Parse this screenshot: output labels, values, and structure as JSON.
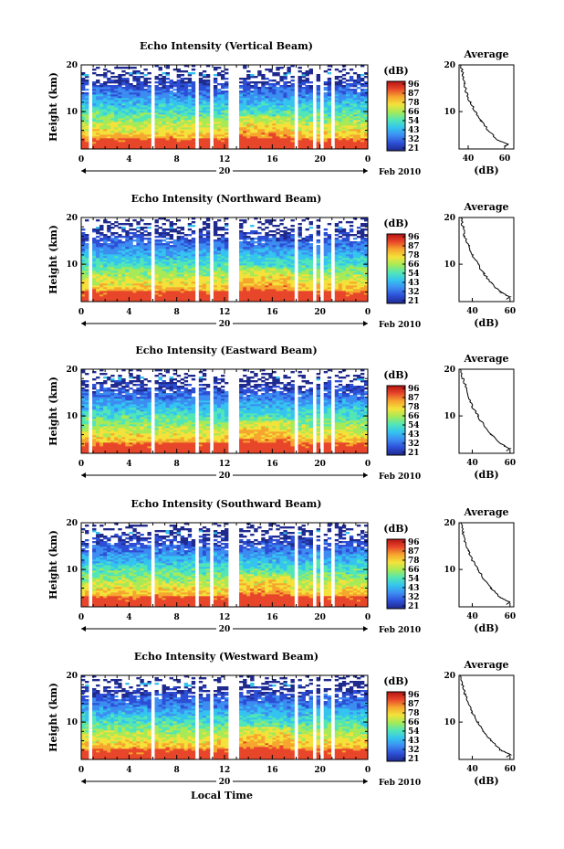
{
  "colormap": [
    "#1f2a8e",
    "#2d4fd6",
    "#3c8cf2",
    "#34c4ef",
    "#52e6b6",
    "#a6ea58",
    "#f4e23a",
    "#f6a52e",
    "#e8462a",
    "#b51414"
  ],
  "chart_data": [
    {
      "type": "heatmap",
      "title": "Echo Intensity (Vertical Beam)",
      "ylabel": "Height (km)",
      "xlabel": "",
      "xlim": [
        0,
        24
      ],
      "ylim": [
        2,
        20
      ],
      "x_ticks": [
        "0",
        "4",
        "8",
        "12",
        "16",
        "20",
        "0"
      ],
      "y_ticks": [
        "20",
        "10"
      ],
      "date_day": "20",
      "date_month": "Feb 2010",
      "colorbar_label": "(dB)",
      "colorbar_ticks": [
        "96",
        "87",
        "78",
        "66",
        "54",
        "43",
        "32",
        "21"
      ],
      "gaps_hours": [
        0.8,
        6.0,
        9.8,
        10.9,
        12.6,
        13.1,
        18.0,
        19.6,
        20.2,
        21.0
      ],
      "profile": {
        "title": "Average",
        "xlabel": "(dB)",
        "x_ticks": [
          "40",
          "60"
        ],
        "y_ticks": [
          "20",
          "10"
        ],
        "xlim": [
          35,
          65
        ],
        "height": [
          20,
          18,
          16,
          14,
          12,
          10,
          8,
          6,
          4,
          3,
          2.5
        ],
        "value": [
          36,
          37,
          38,
          39,
          41,
          44,
          47,
          51,
          56,
          62,
          60
        ]
      }
    },
    {
      "type": "heatmap",
      "title": "Echo Intensity (Northward Beam)",
      "ylabel": "Height (km)",
      "xlabel": "",
      "xlim": [
        0,
        24
      ],
      "ylim": [
        2,
        20
      ],
      "x_ticks": [
        "0",
        "4",
        "8",
        "12",
        "16",
        "20",
        "0"
      ],
      "y_ticks": [
        "20",
        "10"
      ],
      "date_day": "20",
      "date_month": "Feb 2010",
      "colorbar_label": "(dB)",
      "colorbar_ticks": [
        "96",
        "87",
        "78",
        "66",
        "54",
        "43",
        "32",
        "21"
      ],
      "gaps_hours": [
        0.8,
        6.0,
        9.8,
        10.9,
        12.6,
        13.1,
        18.0,
        19.6,
        20.2,
        21.0
      ],
      "profile": {
        "title": "Average",
        "xlabel": "(dB)",
        "x_ticks": [
          "40",
          "60"
        ],
        "y_ticks": [
          "20",
          "10"
        ],
        "xlim": [
          33,
          62
        ],
        "height": [
          20,
          18,
          16,
          14,
          12,
          10,
          8,
          6,
          4,
          3,
          2.5
        ],
        "value": [
          34,
          35,
          36,
          38,
          40,
          43,
          46,
          50,
          55,
          60,
          58
        ]
      }
    },
    {
      "type": "heatmap",
      "title": "Echo Intensity (Eastward Beam)",
      "ylabel": "Height (km)",
      "xlabel": "",
      "xlim": [
        0,
        24
      ],
      "ylim": [
        2,
        20
      ],
      "x_ticks": [
        "0",
        "4",
        "8",
        "12",
        "16",
        "20",
        "0"
      ],
      "y_ticks": [
        "20",
        "10"
      ],
      "date_day": "20",
      "date_month": "Feb 2010",
      "colorbar_label": "(dB)",
      "colorbar_ticks": [
        "96",
        "87",
        "78",
        "66",
        "54",
        "43",
        "32",
        "21"
      ],
      "gaps_hours": [
        0.8,
        6.0,
        9.8,
        10.9,
        12.6,
        13.1,
        18.0,
        19.6,
        20.2,
        21.0
      ],
      "profile": {
        "title": "Average",
        "xlabel": "(dB)",
        "x_ticks": [
          "40",
          "60"
        ],
        "y_ticks": [
          "20",
          "10"
        ],
        "xlim": [
          33,
          62
        ],
        "height": [
          20,
          18,
          16,
          14,
          12,
          10,
          8,
          6,
          4,
          3,
          2.5
        ],
        "value": [
          34,
          35,
          37,
          38,
          40,
          43,
          46,
          50,
          55,
          60,
          58
        ]
      }
    },
    {
      "type": "heatmap",
      "title": "Echo Intensity (Southward Beam)",
      "ylabel": "Height (km)",
      "xlabel": "",
      "xlim": [
        0,
        24
      ],
      "ylim": [
        2,
        20
      ],
      "x_ticks": [
        "0",
        "4",
        "8",
        "12",
        "16",
        "20",
        "0"
      ],
      "y_ticks": [
        "20",
        "10"
      ],
      "date_day": "20",
      "date_month": "Feb 2010",
      "colorbar_label": "(dB)",
      "colorbar_ticks": [
        "96",
        "87",
        "78",
        "66",
        "54",
        "43",
        "32",
        "21"
      ],
      "gaps_hours": [
        0.8,
        6.0,
        9.8,
        10.9,
        12.6,
        13.1,
        18.0,
        19.6,
        20.2,
        21.0
      ],
      "profile": {
        "title": "Average",
        "xlabel": "(dB)",
        "x_ticks": [
          "40",
          "60"
        ],
        "y_ticks": [
          "20",
          "10"
        ],
        "xlim": [
          33,
          62
        ],
        "height": [
          20,
          18,
          16,
          14,
          12,
          10,
          8,
          6,
          4,
          3,
          2.5
        ],
        "value": [
          34,
          35,
          36,
          38,
          40,
          43,
          46,
          50,
          55,
          60,
          58
        ]
      }
    },
    {
      "type": "heatmap",
      "title": "Echo Intensity (Westward Beam)",
      "ylabel": "Height (km)",
      "xlabel": "Local Time",
      "xlim": [
        0,
        24
      ],
      "ylim": [
        2,
        20
      ],
      "x_ticks": [
        "0",
        "4",
        "8",
        "12",
        "16",
        "20",
        "0"
      ],
      "y_ticks": [
        "20",
        "10"
      ],
      "date_day": "20",
      "date_month": "Feb 2010",
      "colorbar_label": "(dB)",
      "colorbar_ticks": [
        "96",
        "87",
        "78",
        "66",
        "54",
        "43",
        "32",
        "21"
      ],
      "gaps_hours": [
        0.8,
        6.0,
        9.8,
        10.9,
        12.6,
        13.1,
        18.0,
        19.6,
        20.2,
        21.0
      ],
      "profile": {
        "title": "Average",
        "xlabel": "(dB)",
        "x_ticks": [
          "40",
          "60"
        ],
        "y_ticks": [
          "20",
          "10"
        ],
        "xlim": [
          33,
          62
        ],
        "height": [
          20,
          18,
          16,
          14,
          12,
          10,
          8,
          6,
          4,
          3,
          2.5
        ],
        "value": [
          34,
          35,
          36,
          38,
          40,
          43,
          46,
          50,
          55,
          60,
          58
        ]
      }
    }
  ]
}
